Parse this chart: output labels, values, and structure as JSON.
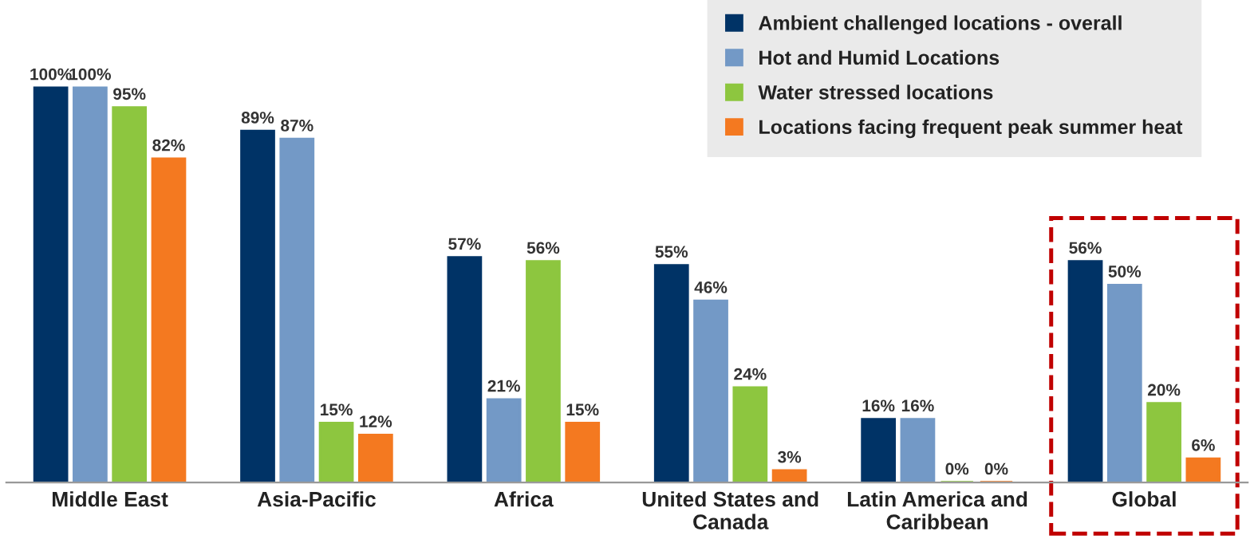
{
  "chart_data": {
    "type": "bar",
    "categories": [
      "Middle East",
      "Asia-Pacific",
      "Africa",
      "United States and\nCanada",
      "Latin America and\nCaribbean",
      "Global"
    ],
    "series": [
      {
        "name": "Ambient challenged locations - overall",
        "color": "#003366",
        "values": [
          100,
          89,
          57,
          55,
          16,
          56
        ],
        "value_labels": [
          "100%",
          "89%",
          "57%",
          "55%",
          "16%",
          "56%"
        ]
      },
      {
        "name": "Hot and Humid Locations",
        "color": "#7399c6",
        "values": [
          100,
          87,
          21,
          46,
          16,
          50
        ],
        "value_labels": [
          "100%",
          "87%",
          "21%",
          "46%",
          "16%",
          "50%"
        ]
      },
      {
        "name": "Water stressed locations",
        "color": "#8dc63f",
        "values": [
          95,
          15,
          56,
          24,
          0,
          20
        ],
        "value_labels": [
          "95%",
          "15%",
          "56%",
          "24%",
          "0%",
          "20%"
        ]
      },
      {
        "name": "Locations facing frequent peak summer heat",
        "color": "#f47920",
        "values": [
          82,
          12,
          15,
          3,
          0,
          6
        ],
        "value_labels": [
          "82%",
          "12%",
          "15%",
          "3%",
          "0%",
          "6%"
        ]
      }
    ],
    "legend": "top right",
    "grid": false
  }
}
